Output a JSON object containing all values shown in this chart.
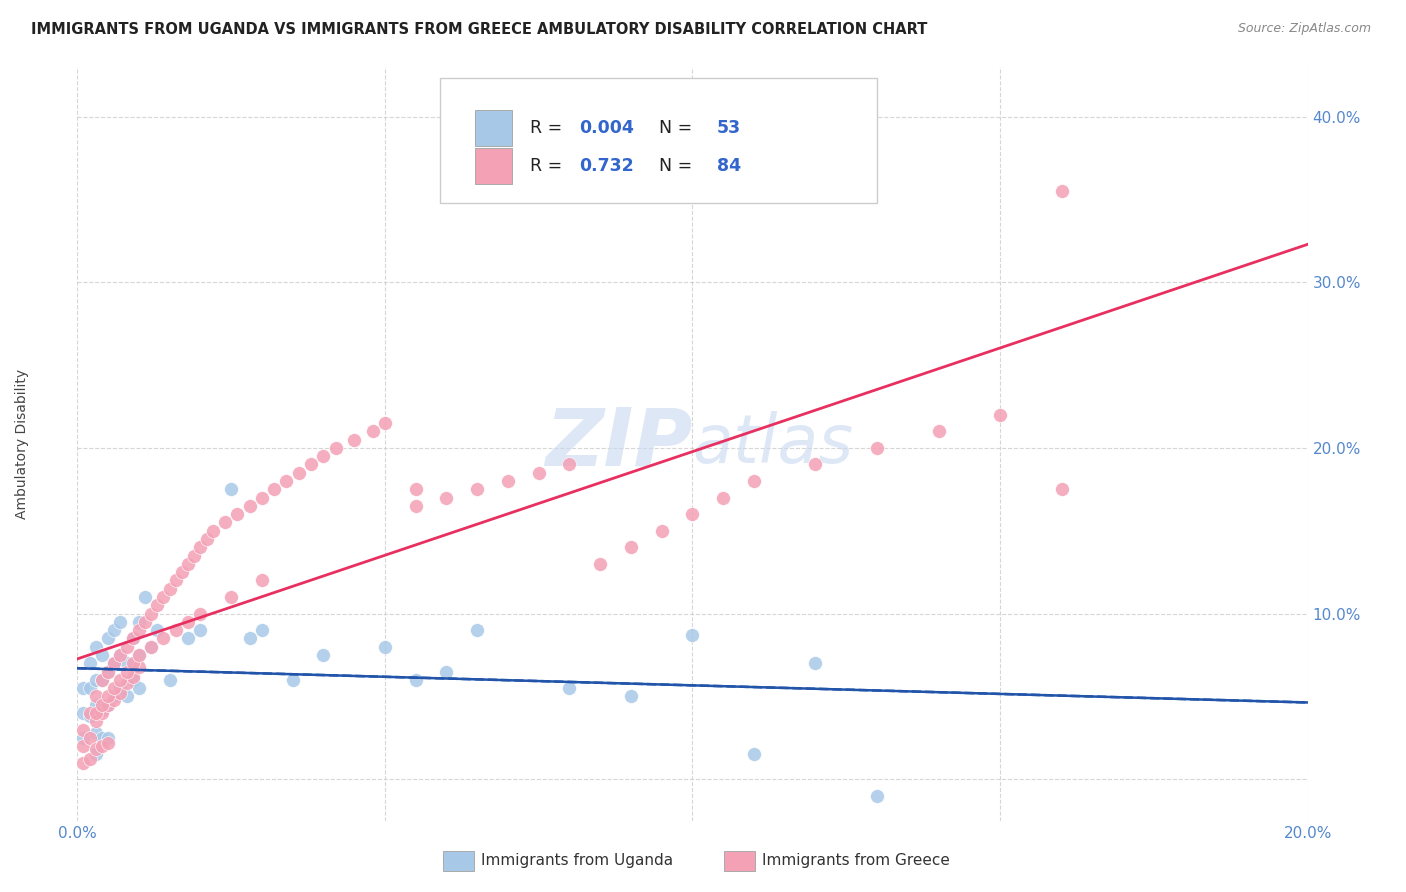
{
  "title": "IMMIGRANTS FROM UGANDA VS IMMIGRANTS FROM GREECE AMBULATORY DISABILITY CORRELATION CHART",
  "source": "Source: ZipAtlas.com",
  "ylabel": "Ambulatory Disability",
  "xlabel_uganda": "Immigrants from Uganda",
  "xlabel_greece": "Immigrants from Greece",
  "xlim": [
    0.0,
    0.2
  ],
  "ylim": [
    -0.025,
    0.43
  ],
  "yticks": [
    0.0,
    0.1,
    0.2,
    0.3,
    0.4
  ],
  "ytick_labels": [
    "",
    "10.0%",
    "20.0%",
    "30.0%",
    "40.0%"
  ],
  "xticks": [
    0.0,
    0.05,
    0.1,
    0.15,
    0.2
  ],
  "xtick_labels": [
    "0.0%",
    "",
    "",
    "",
    "20.0%"
  ],
  "legend_r_uganda": "0.004",
  "legend_n_uganda": "53",
  "legend_r_greece": "0.732",
  "legend_n_greece": "84",
  "color_uganda": "#a8c8e8",
  "color_greece": "#f4a0b5",
  "trendline_uganda_color": "#2255aa",
  "trendline_greece_color": "#e83060",
  "watermark": "ZIPatlas",
  "watermark_color": "#c0d4ee",
  "uganda_x": [
    0.001,
    0.001,
    0.001,
    0.002,
    0.002,
    0.002,
    0.003,
    0.003,
    0.003,
    0.003,
    0.003,
    0.004,
    0.004,
    0.004,
    0.004,
    0.005,
    0.005,
    0.005,
    0.005,
    0.006,
    0.006,
    0.006,
    0.007,
    0.007,
    0.007,
    0.008,
    0.008,
    0.009,
    0.009,
    0.01,
    0.01,
    0.01,
    0.011,
    0.012,
    0.013,
    0.015,
    0.018,
    0.02,
    0.025,
    0.028,
    0.03,
    0.035,
    0.04,
    0.05,
    0.055,
    0.06,
    0.065,
    0.08,
    0.09,
    0.1,
    0.11,
    0.12,
    0.13
  ],
  "uganda_y": [
    0.055,
    0.04,
    0.025,
    0.07,
    0.055,
    0.038,
    0.08,
    0.06,
    0.045,
    0.028,
    0.015,
    0.075,
    0.06,
    0.042,
    0.025,
    0.085,
    0.065,
    0.045,
    0.025,
    0.09,
    0.07,
    0.05,
    0.095,
    0.075,
    0.055,
    0.07,
    0.05,
    0.085,
    0.06,
    0.095,
    0.075,
    0.055,
    0.11,
    0.08,
    0.09,
    0.06,
    0.085,
    0.09,
    0.175,
    0.085,
    0.09,
    0.06,
    0.075,
    0.08,
    0.06,
    0.065,
    0.09,
    0.055,
    0.05,
    0.087,
    0.015,
    0.07,
    -0.01
  ],
  "greece_x": [
    0.001,
    0.001,
    0.001,
    0.002,
    0.002,
    0.002,
    0.003,
    0.003,
    0.003,
    0.004,
    0.004,
    0.004,
    0.005,
    0.005,
    0.005,
    0.006,
    0.006,
    0.007,
    0.007,
    0.008,
    0.008,
    0.009,
    0.009,
    0.01,
    0.01,
    0.011,
    0.012,
    0.013,
    0.014,
    0.015,
    0.016,
    0.017,
    0.018,
    0.019,
    0.02,
    0.021,
    0.022,
    0.024,
    0.026,
    0.028,
    0.03,
    0.032,
    0.034,
    0.036,
    0.038,
    0.04,
    0.042,
    0.045,
    0.048,
    0.05,
    0.055,
    0.06,
    0.065,
    0.07,
    0.075,
    0.08,
    0.085,
    0.09,
    0.095,
    0.1,
    0.105,
    0.11,
    0.12,
    0.13,
    0.14,
    0.15,
    0.16,
    0.003,
    0.004,
    0.005,
    0.006,
    0.007,
    0.008,
    0.009,
    0.01,
    0.012,
    0.014,
    0.016,
    0.018,
    0.02,
    0.025,
    0.03,
    0.055,
    0.16
  ],
  "greece_y": [
    0.03,
    0.02,
    0.01,
    0.04,
    0.025,
    0.012,
    0.05,
    0.035,
    0.018,
    0.06,
    0.04,
    0.02,
    0.065,
    0.045,
    0.022,
    0.07,
    0.048,
    0.075,
    0.052,
    0.08,
    0.058,
    0.085,
    0.062,
    0.09,
    0.068,
    0.095,
    0.1,
    0.105,
    0.11,
    0.115,
    0.12,
    0.125,
    0.13,
    0.135,
    0.14,
    0.145,
    0.15,
    0.155,
    0.16,
    0.165,
    0.17,
    0.175,
    0.18,
    0.185,
    0.19,
    0.195,
    0.2,
    0.205,
    0.21,
    0.215,
    0.165,
    0.17,
    0.175,
    0.18,
    0.185,
    0.19,
    0.13,
    0.14,
    0.15,
    0.16,
    0.17,
    0.18,
    0.19,
    0.2,
    0.21,
    0.22,
    0.175,
    0.04,
    0.045,
    0.05,
    0.055,
    0.06,
    0.065,
    0.07,
    0.075,
    0.08,
    0.085,
    0.09,
    0.095,
    0.1,
    0.11,
    0.12,
    0.175,
    0.355
  ]
}
